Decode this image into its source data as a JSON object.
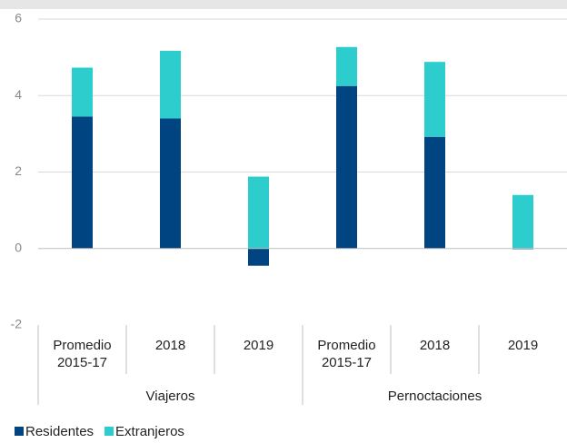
{
  "chart_data": {
    "type": "bar",
    "stacked": true,
    "groups": [
      {
        "name": "Viajeros",
        "categories": [
          "Promedio 2015-17",
          "2018",
          "2019"
        ]
      },
      {
        "name": "Pernoctaciones",
        "categories": [
          "Promedio 2015-17",
          "2018",
          "2019"
        ]
      }
    ],
    "series": [
      {
        "name": "Residentes",
        "color": "#004481",
        "values": [
          3.45,
          3.4,
          -0.45,
          4.25,
          2.92,
          -0.02
        ]
      },
      {
        "name": "Extranjeros",
        "color": "#2dcccd",
        "values": [
          1.28,
          1.77,
          1.88,
          1.02,
          1.96,
          1.4
        ]
      }
    ],
    "ylim": [
      -2,
      6
    ],
    "yticks": [
      -2,
      0,
      2,
      4,
      6
    ],
    "grid": true
  }
}
